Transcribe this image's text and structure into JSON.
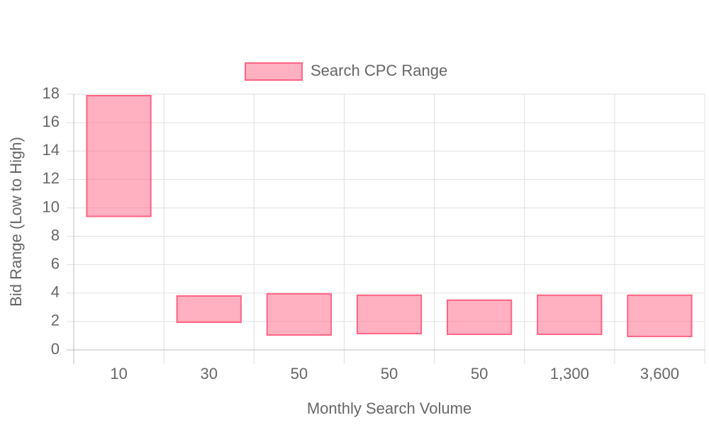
{
  "chart_data": {
    "type": "floating-bar",
    "x_label": "Monthly Search Volume",
    "y_label": "Bid Range (Low to High)",
    "categories": [
      "10",
      "30",
      "50",
      "50",
      "50",
      "1,300",
      "3,600"
    ],
    "series": [
      {
        "name": "Search CPC Range",
        "color": "#ff6384",
        "low": [
          9.4,
          1.95,
          1.05,
          1.15,
          1.1,
          1.1,
          0.95
        ],
        "high": [
          17.9,
          3.8,
          3.95,
          3.85,
          3.5,
          3.85,
          3.85
        ]
      }
    ],
    "ylim": [
      0,
      18
    ],
    "yticks": [
      0,
      2,
      4,
      6,
      8,
      10,
      12,
      14,
      16,
      18
    ],
    "grid": true,
    "legend": "top"
  }
}
